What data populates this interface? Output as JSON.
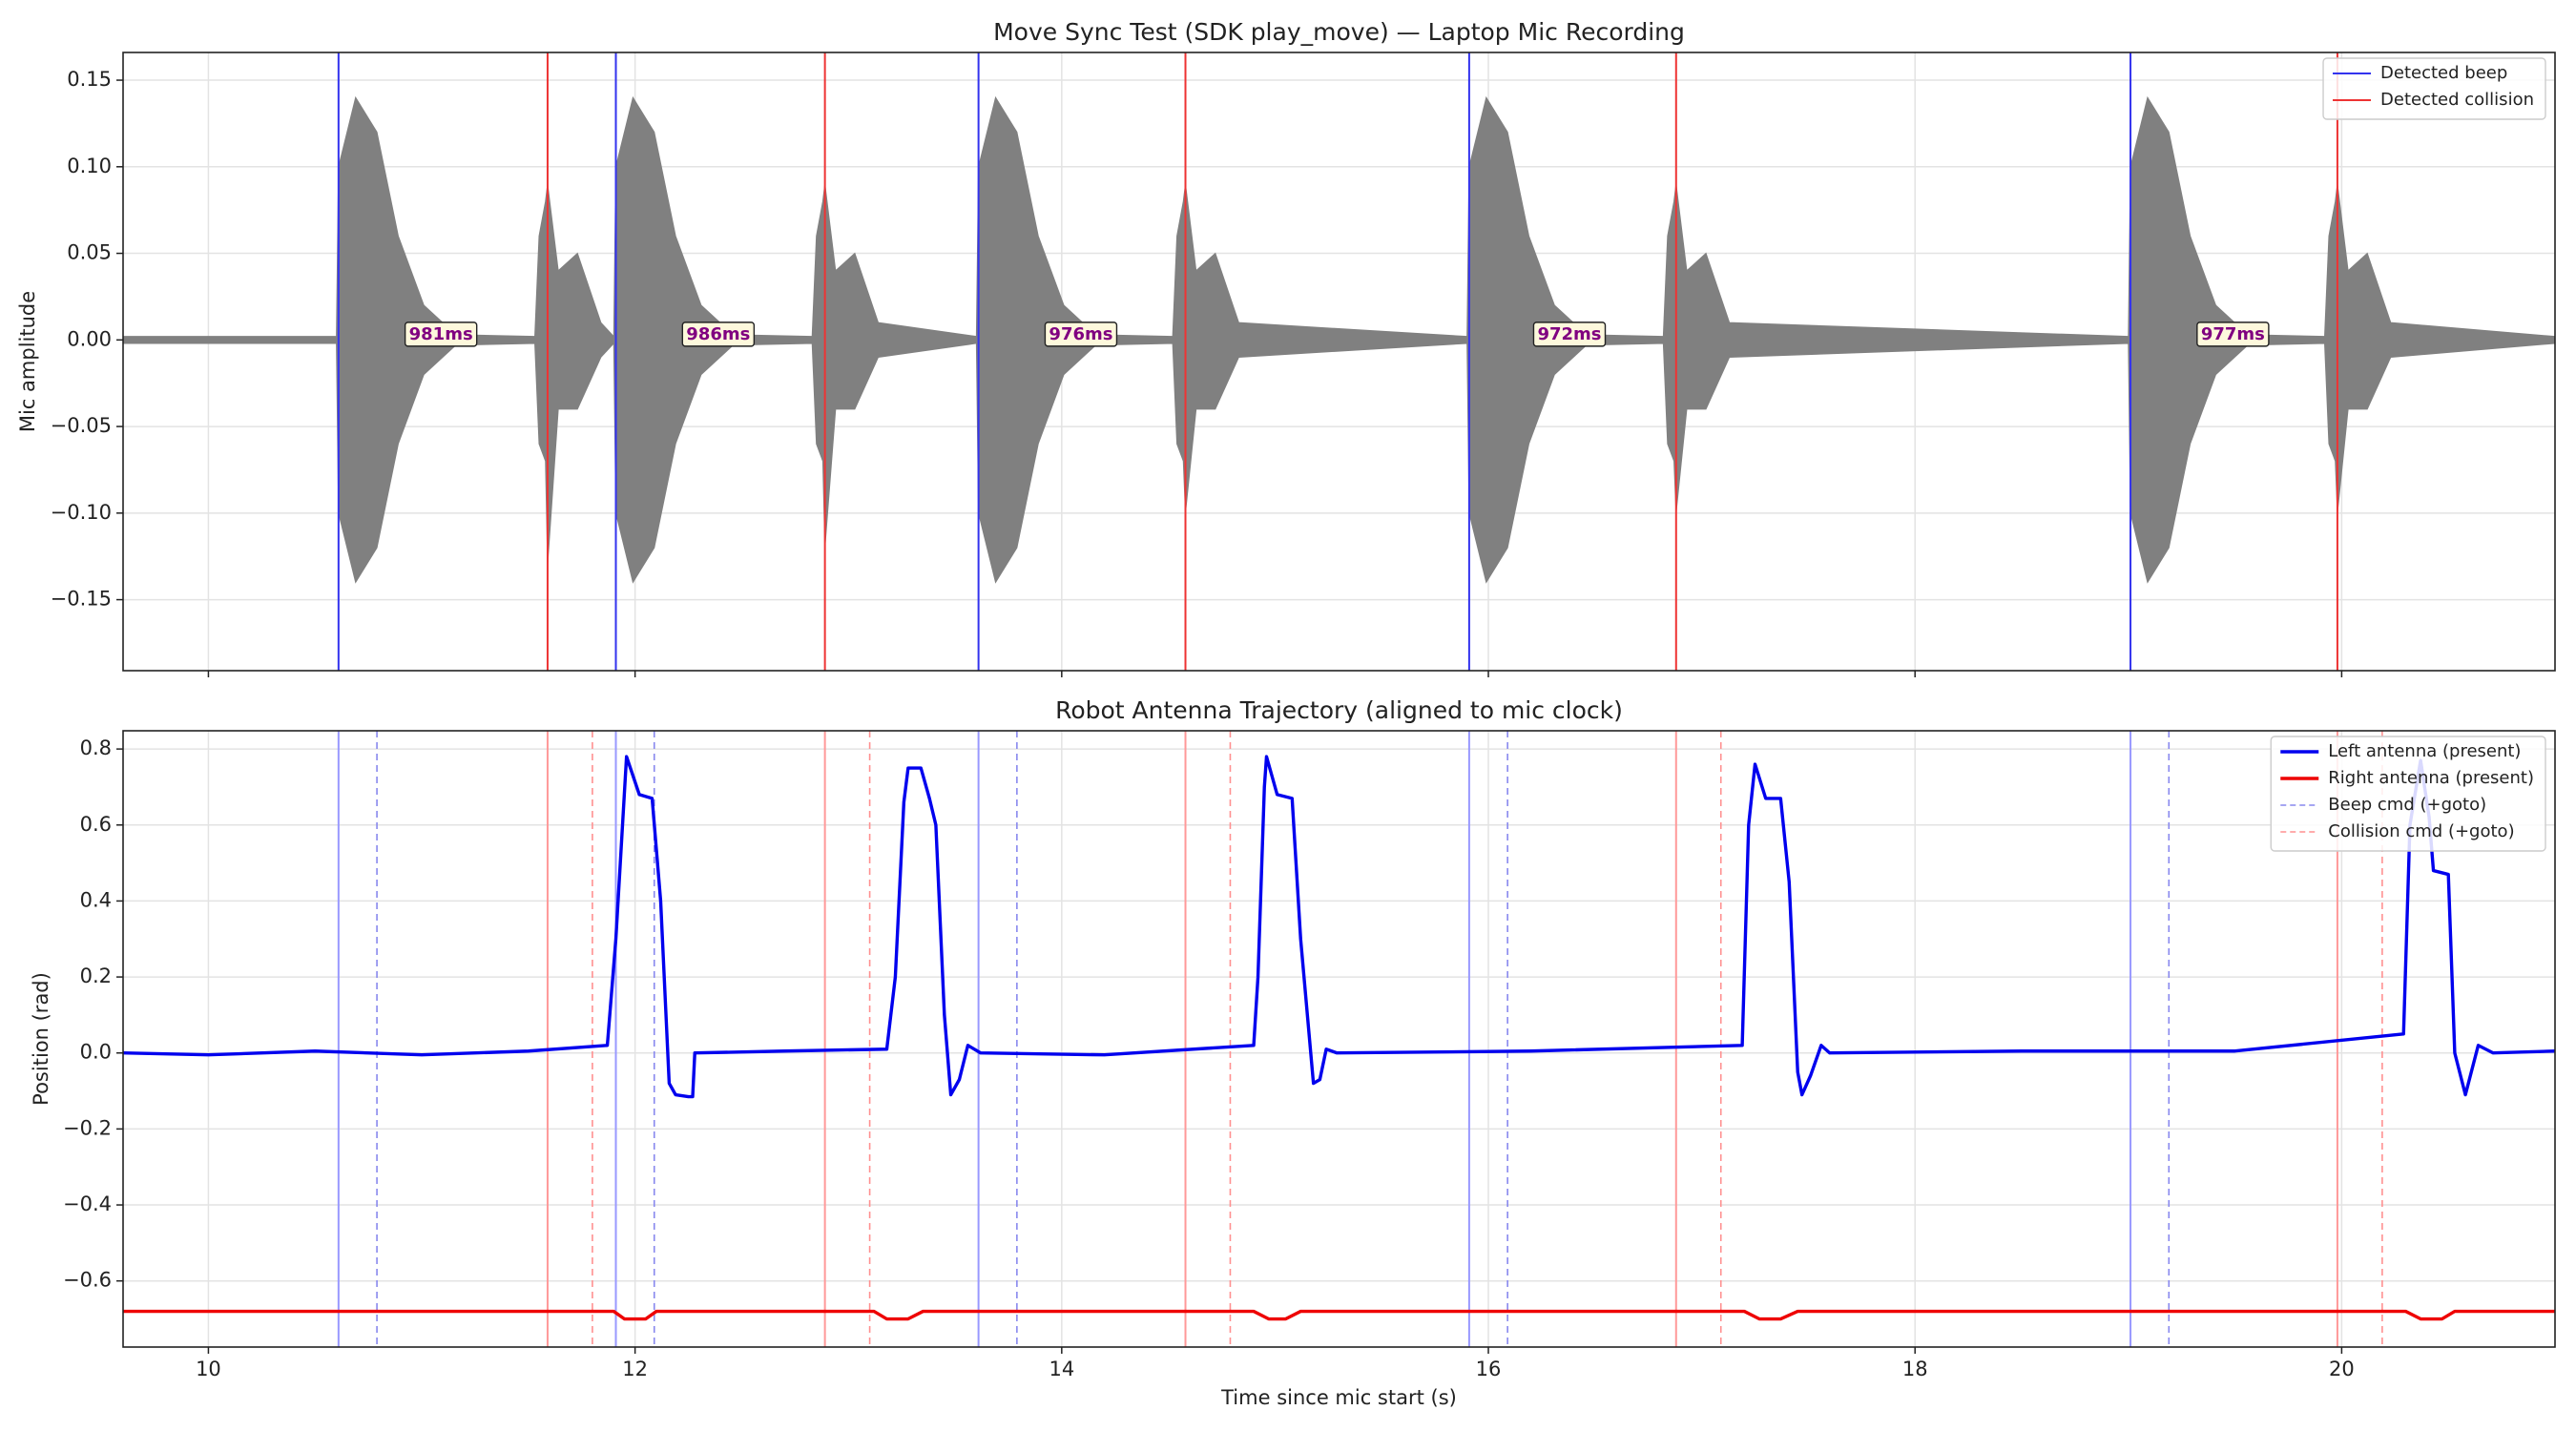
{
  "chart_data": [
    {
      "type": "line",
      "title": "Move Sync Test (SDK play_move) — Laptop Mic Recording",
      "ylabel": "Mic amplitude",
      "xlim": [
        9.6,
        21.0
      ],
      "ylim": [
        -0.191,
        0.166
      ],
      "xticks": [
        10,
        12,
        14,
        16,
        18,
        20
      ],
      "xtick_labels": false,
      "yticks": [
        {
          "value": -0.15,
          "label": "−0.15"
        },
        {
          "value": -0.1,
          "label": "−0.10"
        },
        {
          "value": -0.05,
          "label": "−0.05"
        },
        {
          "value": 0,
          "label": "0.00"
        },
        {
          "value": 0.05,
          "label": "0.05"
        },
        {
          "value": 0.1,
          "label": "0.10"
        },
        {
          "value": 0.15,
          "label": "0.15"
        }
      ],
      "grid": true,
      "legend": "upper right",
      "waveform": {
        "color": "#808080",
        "x": [
          9.6,
          10.6,
          10.61,
          10.69,
          10.79,
          10.89,
          11.01,
          11.16,
          11.53,
          11.55,
          11.58,
          11.59,
          11.64,
          11.73,
          11.84,
          11.9,
          11.91,
          11.99,
          12.09,
          12.19,
          12.31,
          12.46,
          12.83,
          12.85,
          12.88,
          12.89,
          12.94,
          13.03,
          13.14,
          13.6,
          13.61,
          13.69,
          13.79,
          13.89,
          14.01,
          14.16,
          14.52,
          14.54,
          14.57,
          14.58,
          14.63,
          14.72,
          14.83,
          15.9,
          15.91,
          15.99,
          16.09,
          16.19,
          16.31,
          16.46,
          16.82,
          16.84,
          16.87,
          16.88,
          16.93,
          17.02,
          17.13,
          19.0,
          19.01,
          19.09,
          19.19,
          19.29,
          19.41,
          19.56,
          19.92,
          19.94,
          19.97,
          19.98,
          20.03,
          20.12,
          20.23,
          21.0
        ],
        "upper": [
          0.002,
          0.002,
          0.1,
          0.14,
          0.12,
          0.06,
          0.02,
          0.003,
          0.002,
          0.06,
          0.08,
          0.09,
          0.04,
          0.05,
          0.01,
          0.002,
          0.1,
          0.14,
          0.12,
          0.06,
          0.02,
          0.003,
          0.002,
          0.06,
          0.08,
          0.09,
          0.04,
          0.05,
          0.01,
          0.002,
          0.1,
          0.14,
          0.12,
          0.06,
          0.02,
          0.003,
          0.002,
          0.06,
          0.08,
          0.09,
          0.04,
          0.05,
          0.01,
          0.002,
          0.1,
          0.14,
          0.12,
          0.06,
          0.02,
          0.003,
          0.002,
          0.06,
          0.08,
          0.09,
          0.04,
          0.05,
          0.01,
          0.002,
          0.1,
          0.14,
          0.12,
          0.06,
          0.02,
          0.003,
          0.002,
          0.06,
          0.08,
          0.09,
          0.04,
          0.05,
          0.01,
          0.002
        ],
        "lower": [
          -0.002,
          -0.002,
          -0.1,
          -0.14,
          -0.12,
          -0.06,
          -0.02,
          -0.003,
          -0.002,
          -0.06,
          -0.07,
          -0.13,
          -0.04,
          -0.04,
          -0.01,
          -0.002,
          -0.1,
          -0.14,
          -0.12,
          -0.06,
          -0.02,
          -0.003,
          -0.002,
          -0.06,
          -0.07,
          -0.12,
          -0.04,
          -0.04,
          -0.01,
          -0.002,
          -0.1,
          -0.14,
          -0.12,
          -0.06,
          -0.02,
          -0.003,
          -0.002,
          -0.06,
          -0.07,
          -0.1,
          -0.04,
          -0.04,
          -0.01,
          -0.002,
          -0.1,
          -0.14,
          -0.12,
          -0.06,
          -0.02,
          -0.003,
          -0.002,
          -0.06,
          -0.07,
          -0.1,
          -0.04,
          -0.04,
          -0.01,
          -0.002,
          -0.1,
          -0.14,
          -0.12,
          -0.06,
          -0.02,
          -0.003,
          -0.002,
          -0.06,
          -0.07,
          -0.1,
          -0.04,
          -0.04,
          -0.01,
          -0.002
        ]
      },
      "vlines": [
        {
          "name": "Detected beep",
          "color": "#3333ee",
          "dash": false,
          "x": [
            10.61,
            11.91,
            13.61,
            15.91,
            19.01
          ]
        },
        {
          "name": "Detected collision",
          "color": "#ee3333",
          "dash": false,
          "x": [
            11.59,
            12.89,
            14.58,
            16.88,
            19.98
          ]
        }
      ],
      "annotations": [
        {
          "x": 11.09,
          "y": 0.003,
          "text": "981ms"
        },
        {
          "x": 12.39,
          "y": 0.003,
          "text": "986ms"
        },
        {
          "x": 14.09,
          "y": 0.003,
          "text": "976ms"
        },
        {
          "x": 16.38,
          "y": 0.003,
          "text": "972ms"
        },
        {
          "x": 19.49,
          "y": 0.003,
          "text": "977ms"
        }
      ]
    },
    {
      "type": "line",
      "title": "Robot Antenna Trajectory (aligned to mic clock)",
      "xlabel": "Time since mic start (s)",
      "ylabel": "Position (rad)",
      "xlim": [
        9.6,
        21.0
      ],
      "ylim": [
        -0.774,
        0.848
      ],
      "xticks": [
        10,
        12,
        14,
        16,
        18,
        20
      ],
      "xtick_labels": true,
      "yticks": [
        {
          "value": -0.6,
          "label": "−0.6"
        },
        {
          "value": -0.4,
          "label": "−0.4"
        },
        {
          "value": -0.2,
          "label": "−0.2"
        },
        {
          "value": 0,
          "label": "0.0"
        },
        {
          "value": 0.2,
          "label": "0.2"
        },
        {
          "value": 0.4,
          "label": "0.4"
        },
        {
          "value": 0.6,
          "label": "0.6"
        },
        {
          "value": 0.8,
          "label": "0.8"
        }
      ],
      "grid": true,
      "legend": "upper right",
      "series": [
        {
          "name": "Left antenna (present)",
          "color": "#0000ee",
          "x": [
            9.6,
            10.0,
            10.5,
            11.0,
            11.5,
            11.87,
            11.91,
            11.96,
            12.02,
            12.08,
            12.12,
            12.16,
            12.19,
            12.25,
            12.27,
            12.28,
            12.7,
            13.18,
            13.22,
            13.26,
            13.28,
            13.34,
            13.38,
            13.41,
            13.45,
            13.48,
            13.52,
            13.56,
            13.62,
            14.2,
            14.9,
            14.92,
            14.95,
            14.96,
            15.01,
            15.08,
            15.12,
            15.18,
            15.21,
            15.24,
            15.29,
            16.2,
            17.19,
            17.22,
            17.25,
            17.3,
            17.37,
            17.41,
            17.45,
            17.47,
            17.51,
            17.56,
            17.6,
            18.5,
            19.5,
            20.29,
            20.32,
            20.37,
            20.41,
            20.43,
            20.5,
            20.53,
            20.58,
            20.64,
            20.71,
            21.0
          ],
          "values": [
            0,
            -0.005,
            0.005,
            -0.005,
            0.005,
            0.02,
            0.3,
            0.78,
            0.68,
            0.67,
            0.4,
            -0.08,
            -0.11,
            -0.115,
            -0.115,
            0,
            0.005,
            0.01,
            0.2,
            0.66,
            0.75,
            0.75,
            0.67,
            0.6,
            0.1,
            -0.11,
            -0.07,
            0.02,
            0,
            -0.005,
            0.02,
            0.2,
            0.7,
            0.78,
            0.68,
            0.67,
            0.3,
            -0.08,
            -0.07,
            0.01,
            0,
            0.005,
            0.02,
            0.6,
            0.76,
            0.67,
            0.67,
            0.45,
            -0.05,
            -0.11,
            -0.06,
            0.02,
            0,
            0.005,
            0.005,
            0.05,
            0.6,
            0.77,
            0.62,
            0.48,
            0.47,
            0,
            -0.11,
            0.02,
            0,
            0.005
          ]
        },
        {
          "name": "Right antenna (present)",
          "color": "#ee0000",
          "x": [
            9.6,
            11.9,
            11.95,
            12.05,
            12.1,
            13.12,
            13.18,
            13.28,
            13.35,
            14.9,
            14.97,
            15.05,
            15.12,
            17.2,
            17.27,
            17.37,
            17.45,
            20.3,
            20.37,
            20.47,
            20.53,
            21.0
          ],
          "values": [
            -0.68,
            -0.68,
            -0.7,
            -0.7,
            -0.68,
            -0.68,
            -0.7,
            -0.7,
            -0.68,
            -0.68,
            -0.7,
            -0.7,
            -0.68,
            -0.68,
            -0.7,
            -0.7,
            -0.68,
            -0.68,
            -0.7,
            -0.7,
            -0.68,
            -0.68
          ]
        }
      ],
      "vlines": [
        {
          "color": "#9999ff",
          "dash": false,
          "x": [
            10.61,
            11.91,
            13.61,
            15.91,
            19.01
          ]
        },
        {
          "color": "#ff9999",
          "dash": false,
          "x": [
            11.59,
            12.89,
            14.58,
            16.88,
            19.98
          ]
        },
        {
          "name": "Beep cmd (+goto)",
          "color": "#8888ee",
          "dash": true,
          "x": [
            10.79,
            12.09,
            13.79,
            16.09,
            19.19
          ]
        },
        {
          "name": "Collision cmd (+goto)",
          "color": "#ff9090",
          "dash": true,
          "x": [
            11.8,
            13.1,
            14.79,
            17.09,
            20.19
          ]
        }
      ]
    }
  ]
}
